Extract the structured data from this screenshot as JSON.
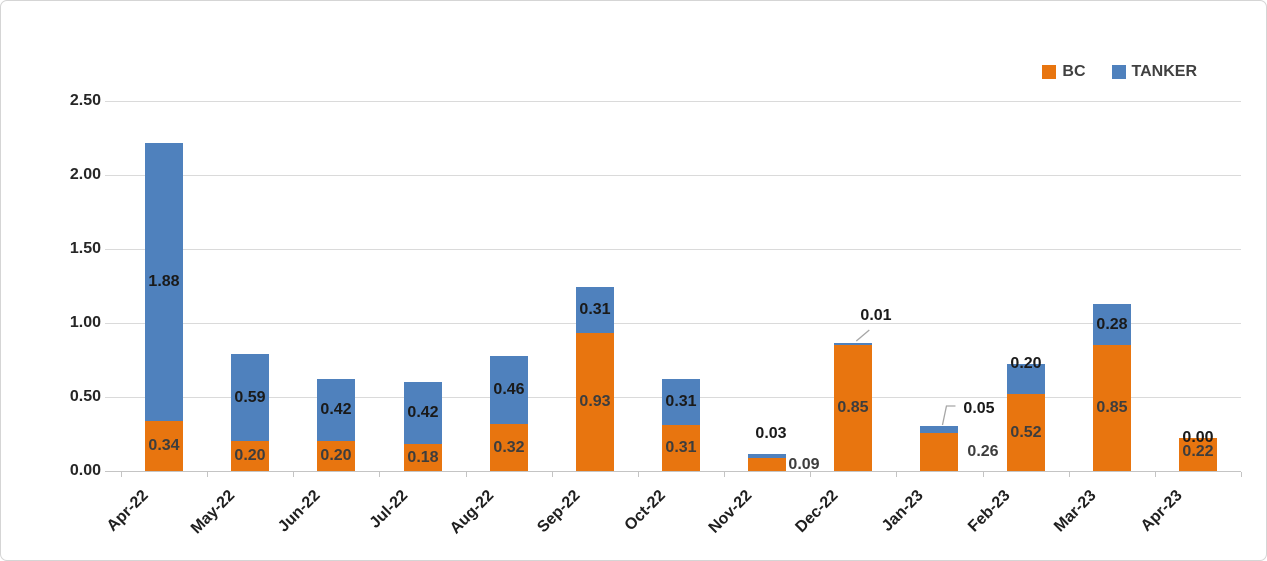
{
  "chart_data": {
    "type": "bar",
    "stacked": true,
    "title": "",
    "xlabel": "",
    "ylabel": "",
    "categories": [
      "Apr-22",
      "May-22",
      "Jun-22",
      "Jul-22",
      "Aug-22",
      "Sep-22",
      "Oct-22",
      "Nov-22",
      "Dec-22",
      "Jan-23",
      "Feb-23",
      "Mar-23",
      "Apr-23"
    ],
    "series": [
      {
        "name": "BC",
        "color": "#E8750F",
        "values": [
          0.34,
          0.2,
          0.2,
          0.18,
          0.32,
          0.93,
          0.31,
          0.09,
          0.85,
          0.26,
          0.52,
          0.85,
          0.22
        ]
      },
      {
        "name": "TANKER",
        "color": "#4F81BD",
        "values": [
          1.88,
          0.59,
          0.42,
          0.42,
          0.46,
          0.31,
          0.31,
          0.03,
          0.01,
          0.05,
          0.2,
          0.28,
          0.0
        ]
      }
    ],
    "y_ticks": [
      "0.00",
      "0.50",
      "1.00",
      "1.50",
      "2.00",
      "2.50"
    ],
    "ylim": [
      0,
      2.5
    ],
    "grid": true,
    "legend_position": "top-right",
    "data_label_format": "0.00"
  },
  "colors": {
    "bc": "#E8750F",
    "tanker": "#4F81BD",
    "gridline": "#DADADA",
    "axis_line": "#C4C4C4",
    "tanker_label": "#1A1A1A",
    "bc_label": "#3D3D3D",
    "legend_text": "#404040",
    "leader_line": "#A6A6A6",
    "frame_border": "#D5D5D5",
    "background": "#FFFFFF"
  }
}
